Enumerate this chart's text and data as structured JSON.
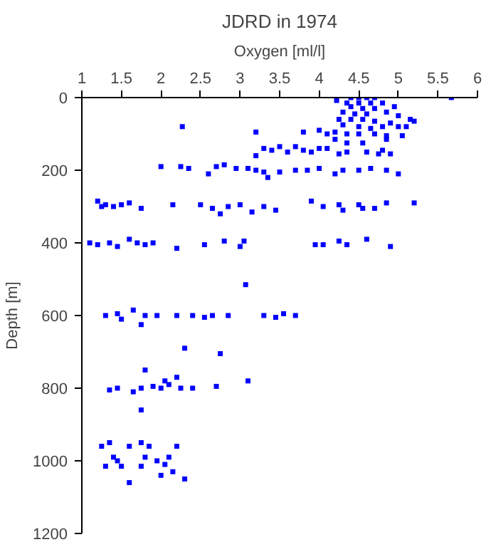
{
  "chart_data": {
    "type": "scatter",
    "title": "JDRD in 1974",
    "xlabel": "Oxygen [ml/l]",
    "ylabel": "Depth [m]",
    "xlim": [
      1,
      6
    ],
    "xticks": [
      1,
      1.5,
      2,
      2.5,
      3,
      3.5,
      4,
      4.5,
      5,
      5.5,
      6
    ],
    "ylim": [
      1200,
      0
    ],
    "yticks": [
      0,
      200,
      400,
      600,
      800,
      1000,
      1200
    ],
    "grid": false,
    "marker": "square",
    "series": [
      {
        "color": "#0000ff",
        "x": [
          4.5,
          4.4,
          4.6,
          4.7,
          5.67,
          4.22,
          4.35,
          4.5,
          4.65,
          4.8,
          4.4,
          4.55,
          4.7,
          4.3,
          4.45,
          4.6,
          4.85,
          4.95,
          5.0,
          4.25,
          4.4,
          4.55,
          4.7,
          4.9,
          5.15,
          5.2,
          4.3,
          4.5,
          4.65,
          4.8,
          5.0,
          5.1,
          4.2,
          4.35,
          4.5,
          4.7,
          4.85,
          5.05,
          3.8,
          4.0,
          4.1,
          4.2,
          4.35,
          4.55,
          4.85,
          2.27,
          3.2,
          3.3,
          3.4,
          3.5,
          3.6,
          3.7,
          3.8,
          3.9,
          4.0,
          4.1,
          4.25,
          4.35,
          4.6,
          4.75,
          4.9,
          3.2,
          4.8,
          2.0,
          2.25,
          2.35,
          2.6,
          2.7,
          2.8,
          2.95,
          3.1,
          3.2,
          3.3,
          3.35,
          3.5,
          3.7,
          3.85,
          4.0,
          4.2,
          4.3,
          4.5,
          4.65,
          4.85,
          5.0,
          1.2,
          1.25,
          1.3,
          1.4,
          1.5,
          1.6,
          1.75,
          2.15,
          2.5,
          2.65,
          2.75,
          2.85,
          3.0,
          3.15,
          3.3,
          3.45,
          3.9,
          4.05,
          4.25,
          4.3,
          4.5,
          4.55,
          4.7,
          4.85,
          5.2,
          1.1,
          1.2,
          1.35,
          1.45,
          1.6,
          1.7,
          1.8,
          1.9,
          2.2,
          2.55,
          2.8,
          3.0,
          3.05,
          3.95,
          4.05,
          4.25,
          4.35,
          4.6,
          4.9,
          3.07,
          1.3,
          1.45,
          1.5,
          1.65,
          1.8,
          1.75,
          1.95,
          2.2,
          2.4,
          2.55,
          2.65,
          2.85,
          3.3,
          3.45,
          3.55,
          3.7,
          2.3,
          2.75,
          1.8,
          3.1,
          1.35,
          1.45,
          1.65,
          1.75,
          1.9,
          2.0,
          2.1,
          2.25,
          2.4,
          2.7,
          2.05,
          2.2,
          1.75,
          1.25,
          1.3,
          1.35,
          1.45,
          1.5,
          1.6,
          1.75,
          1.8,
          1.85,
          1.75,
          1.95,
          2.05,
          2.1,
          2.15,
          2.2,
          2.3,
          1.6,
          2.0,
          1.4
        ],
        "values": [
          0,
          0,
          0,
          0,
          0,
          8,
          15,
          15,
          15,
          15,
          25,
          30,
          30,
          40,
          45,
          45,
          40,
          25,
          50,
          60,
          60,
          60,
          65,
          70,
          60,
          65,
          75,
          80,
          85,
          80,
          80,
          80,
          95,
          100,
          100,
          100,
          105,
          105,
          95,
          90,
          100,
          115,
          125,
          125,
          115,
          80,
          95,
          140,
          145,
          135,
          150,
          135,
          145,
          150,
          140,
          140,
          155,
          150,
          150,
          155,
          155,
          160,
          145,
          190,
          190,
          195,
          210,
          190,
          185,
          195,
          195,
          200,
          205,
          220,
          205,
          200,
          200,
          195,
          210,
          200,
          200,
          195,
          200,
          210,
          285,
          300,
          295,
          300,
          295,
          290,
          305,
          295,
          295,
          305,
          320,
          300,
          295,
          315,
          300,
          310,
          285,
          300,
          295,
          310,
          295,
          305,
          305,
          290,
          290,
          400,
          405,
          400,
          410,
          390,
          400,
          405,
          400,
          415,
          405,
          395,
          410,
          395,
          405,
          405,
          395,
          405,
          390,
          410,
          515,
          600,
          595,
          610,
          585,
          600,
          625,
          600,
          600,
          600,
          605,
          600,
          600,
          600,
          605,
          595,
          600,
          690,
          705,
          750,
          780,
          805,
          800,
          810,
          800,
          795,
          800,
          790,
          800,
          800,
          795,
          780,
          770,
          860,
          960,
          1015,
          950,
          1000,
          1015,
          960,
          950,
          990,
          960,
          1015,
          1000,
          1010,
          990,
          1030,
          960,
          1050,
          1060,
          1040,
          990
        ]
      }
    ]
  }
}
